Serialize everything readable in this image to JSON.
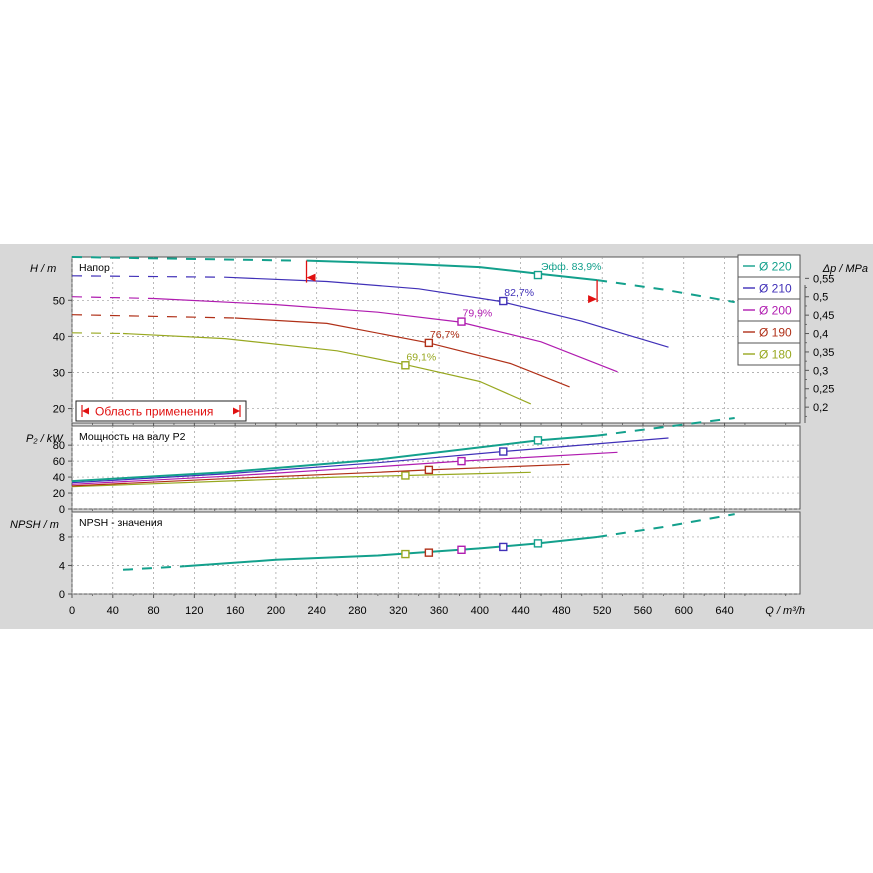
{
  "chart_data": {
    "type": "line",
    "xlabel": "Q / m³/h",
    "x_ticks": [
      0,
      40,
      80,
      120,
      160,
      200,
      240,
      280,
      320,
      360,
      400,
      440,
      480,
      520,
      560,
      600,
      640
    ],
    "xlim": [
      0,
      714
    ],
    "colors": {
      "220": "#13a08c",
      "210": "#4030b8",
      "200": "#b01cb0",
      "190": "#b03018",
      "180": "#98a820"
    },
    "legend": [
      {
        "key": "220",
        "label": "Ø 220"
      },
      {
        "key": "210",
        "label": "Ø 210"
      },
      {
        "key": "200",
        "label": "Ø 200"
      },
      {
        "key": "190",
        "label": "Ø 190"
      },
      {
        "key": "180",
        "label": "Ø 180"
      }
    ],
    "head": {
      "title": "Напор",
      "ylabel": "H / m",
      "y_ticks": [
        20,
        30,
        40,
        50
      ],
      "ylim": [
        16,
        62
      ],
      "right_ylabel": "Δp / MPa",
      "right_ticks": [
        "0,55",
        "0,5",
        "0,45",
        "0,4",
        "0,35",
        "0,3",
        "0,25",
        "0,2"
      ],
      "right_tick_values": [
        0.55,
        0.5,
        0.45,
        0.4,
        0.35,
        0.3,
        0.25,
        0.2
      ],
      "app_range_label": "Область применения",
      "series": [
        {
          "key": "220",
          "dash": [
            [
              0,
              62.0
            ],
            [
              220,
              61.0
            ]
          ],
          "solid": [
            [
              230,
              61.0
            ],
            [
              330,
              60.1
            ],
            [
              400,
              59.2
            ],
            [
              460,
              57.3
            ],
            [
              515,
              55.6
            ]
          ],
          "dash2": [
            [
              515,
              55.6
            ],
            [
              580,
              53.0
            ],
            [
              650,
              49.5
            ]
          ],
          "bep": [
            457,
            57.0
          ],
          "eff": "Эфф.  83,9%"
        },
        {
          "key": "210",
          "dash": [
            [
              0,
              56.8
            ],
            [
              150,
              56.4
            ]
          ],
          "solid": [
            [
              150,
              56.4
            ],
            [
              250,
              55.2
            ],
            [
              340,
              53.2
            ],
            [
              420,
              49.7
            ],
            [
              500,
              44.2
            ],
            [
              585,
              37.0
            ]
          ],
          "bep": [
            423,
            49.8
          ],
          "eff": "82,7%"
        },
        {
          "key": "200",
          "dash": [
            [
              0,
              51.0
            ],
            [
              80,
              50.5
            ]
          ],
          "solid": [
            [
              80,
              50.5
            ],
            [
              200,
              48.8
            ],
            [
              300,
              46.7
            ],
            [
              380,
              44.0
            ],
            [
              460,
              38.5
            ],
            [
              535,
              30.2
            ]
          ],
          "bep": [
            382,
            44.1
          ],
          "eff": "79,9%"
        },
        {
          "key": "190",
          "dash": [
            [
              0,
              46.0
            ],
            [
              160,
              45.1
            ]
          ],
          "solid": [
            [
              160,
              45.1
            ],
            [
              250,
              43.6
            ],
            [
              350,
              38.2
            ],
            [
              430,
              32.5
            ],
            [
              488,
              26.0
            ]
          ],
          "bep": [
            350,
            38.2
          ],
          "eff": "76,7%"
        },
        {
          "key": "180",
          "dash": [
            [
              0,
              41.0
            ],
            [
              50,
              40.8
            ]
          ],
          "solid": [
            [
              50,
              40.8
            ],
            [
              150,
              39.4
            ],
            [
              260,
              36.0
            ],
            [
              330,
              32.0
            ],
            [
              400,
              27.5
            ],
            [
              450,
              21.3
            ]
          ],
          "bep": [
            327,
            32.0
          ],
          "eff": "69,1%"
        }
      ]
    },
    "power": {
      "title": "Мощность на валу P2",
      "ylabel": "P₂ / kW",
      "y_ticks": [
        0,
        20,
        40,
        60,
        80
      ],
      "ylim": [
        0,
        104
      ],
      "series": [
        {
          "key": "220",
          "solid": [
            [
              0,
              35
            ],
            [
              150,
              46
            ],
            [
              300,
              62
            ],
            [
              457,
              86
            ],
            [
              515,
              92
            ]
          ],
          "dash2": [
            [
              515,
              92
            ],
            [
              650,
              114
            ]
          ],
          "bep": [
            457,
            86
          ]
        },
        {
          "key": "210",
          "solid": [
            [
              0,
              33
            ],
            [
              150,
              44
            ],
            [
              300,
              58
            ],
            [
              423,
              72
            ],
            [
              585,
              89
            ]
          ],
          "bep": [
            423,
            72
          ]
        },
        {
          "key": "200",
          "solid": [
            [
              0,
              31
            ],
            [
              150,
              41
            ],
            [
              300,
              53
            ],
            [
              382,
              60
            ],
            [
              535,
              71
            ]
          ],
          "bep": [
            382,
            60
          ]
        },
        {
          "key": "190",
          "solid": [
            [
              0,
              29
            ],
            [
              150,
              38
            ],
            [
              300,
              46
            ],
            [
              350,
              49
            ],
            [
              488,
              56
            ]
          ],
          "bep": [
            350,
            49
          ]
        },
        {
          "key": "180",
          "solid": [
            [
              0,
              28
            ],
            [
              150,
              35
            ],
            [
              260,
              40
            ],
            [
              327,
              42
            ],
            [
              450,
              46
            ]
          ],
          "bep": [
            327,
            42
          ]
        }
      ]
    },
    "npsh": {
      "title": "NPSH - значения",
      "ylabel": "NPSH / m",
      "y_ticks": [
        0,
        4,
        8
      ],
      "ylim": [
        0,
        11.5
      ],
      "series": [
        {
          "key": "220",
          "dash": [
            [
              50,
              3.4
            ],
            [
              110,
              3.9
            ]
          ],
          "solid": [
            [
              110,
              3.9
            ],
            [
              200,
              4.8
            ],
            [
              300,
              5.4
            ],
            [
              400,
              6.4
            ],
            [
              457,
              7.1
            ],
            [
              515,
              8.0
            ]
          ],
          "dash2": [
            [
              515,
              8.0
            ],
            [
              580,
              9.4
            ],
            [
              650,
              11.2
            ]
          ]
        }
      ],
      "points": [
        {
          "key": "180",
          "q": 327,
          "v": 5.6
        },
        {
          "key": "190",
          "q": 350,
          "v": 5.8
        },
        {
          "key": "200",
          "q": 382,
          "v": 6.2
        },
        {
          "key": "210",
          "q": 423,
          "v": 6.6
        },
        {
          "key": "220",
          "q": 457,
          "v": 7.1
        }
      ]
    }
  }
}
